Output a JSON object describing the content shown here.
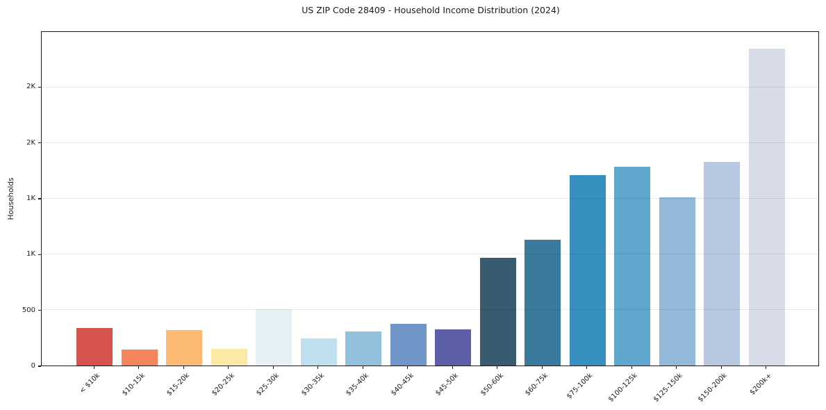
{
  "chart_data": {
    "type": "bar",
    "title": "US ZIP Code 28409 - Household Income Distribution (2024)",
    "xlabel": "",
    "ylabel": "Households",
    "ylim": [
      0,
      3000
    ],
    "grid": true,
    "legend": "none",
    "categories": [
      "< $10k",
      "$10-15k",
      "$15-20k",
      "$20-25k",
      "$25-30k",
      "$30-35k",
      "$35-40k",
      "$40-45k",
      "$45-50k",
      "$50-60k",
      "$60-75k",
      "$75-100k",
      "$100-125k",
      "$125-150k",
      "$150-200k",
      "$200k+"
    ],
    "values": [
      335,
      145,
      320,
      150,
      505,
      245,
      305,
      375,
      325,
      970,
      1130,
      1710,
      1790,
      1515,
      1830,
      2850
    ],
    "bar_colors": [
      "#d5544d",
      "#f4845c",
      "#fcba73",
      "#fde9a6",
      "#e6f1f6",
      "#bfe0ee",
      "#92c0dd",
      "#7095c8",
      "#5c5fa8",
      "#395b70",
      "#3a7a9c",
      "#3890c1",
      "#5fa7cc",
      "#92b9d9",
      "#b8c8e0",
      "#d8dbe8"
    ],
    "yticks": [
      {
        "value": 0,
        "label": "0"
      },
      {
        "value": 500,
        "label": "500"
      },
      {
        "value": 1000,
        "label": "1K"
      },
      {
        "value": 1500,
        "label": "1K"
      },
      {
        "value": 2000,
        "label": "2K"
      },
      {
        "value": 2500,
        "label": "2K"
      }
    ],
    "axis_color": "#1a1a1a",
    "grid_color": "rgba(0,0,0,0.09)",
    "background_color": "#ffffff"
  }
}
